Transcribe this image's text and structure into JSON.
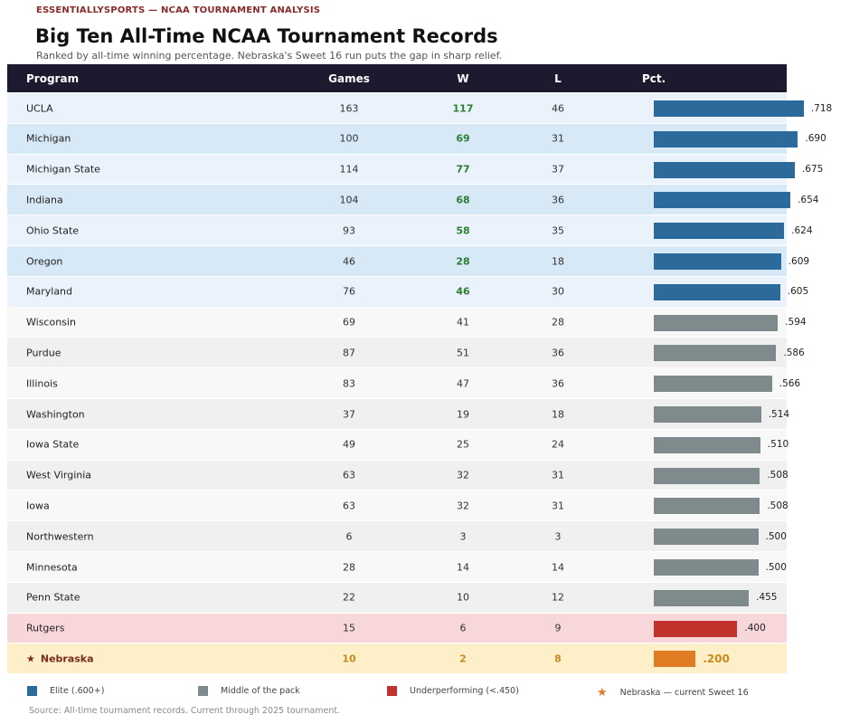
{
  "header": {
    "kicker": "ESSENTIALLYSPORTS — NCAA TOURNAMENT ANALYSIS",
    "title": "Big Ten All-Time NCAA Tournament Records",
    "subtitle": "Ranked by all-time winning percentage. Nebraska's Sweet 16 run puts the gap in sharp relief."
  },
  "chart_data": {
    "type": "table",
    "columns": [
      "Program",
      "Games",
      "W",
      "L",
      "Pct."
    ],
    "rows": [
      {
        "program": "UCLA",
        "games": "163",
        "w": "117",
        "l": "46",
        "pct": ".718",
        "value": 0.718,
        "tier": "elite"
      },
      {
        "program": "Michigan",
        "games": "100",
        "w": "69",
        "l": "31",
        "pct": ".690",
        "value": 0.69,
        "tier": "elite"
      },
      {
        "program": "Michigan State",
        "games": "114",
        "w": "77",
        "l": "37",
        "pct": ".675",
        "value": 0.675,
        "tier": "elite"
      },
      {
        "program": "Indiana",
        "games": "104",
        "w": "68",
        "l": "36",
        "pct": ".654",
        "value": 0.654,
        "tier": "elite"
      },
      {
        "program": "Ohio State",
        "games": "93",
        "w": "58",
        "l": "35",
        "pct": ".624",
        "value": 0.624,
        "tier": "elite"
      },
      {
        "program": "Oregon",
        "games": "46",
        "w": "28",
        "l": "18",
        "pct": ".609",
        "value": 0.609,
        "tier": "elite"
      },
      {
        "program": "Maryland",
        "games": "76",
        "w": "46",
        "l": "30",
        "pct": ".605",
        "value": 0.605,
        "tier": "elite"
      },
      {
        "program": "Wisconsin",
        "games": "69",
        "w": "41",
        "l": "28",
        "pct": ".594",
        "value": 0.594,
        "tier": "mid"
      },
      {
        "program": "Purdue",
        "games": "87",
        "w": "51",
        "l": "36",
        "pct": ".586",
        "value": 0.586,
        "tier": "mid"
      },
      {
        "program": "Illinois",
        "games": "83",
        "w": "47",
        "l": "36",
        "pct": ".566",
        "value": 0.566,
        "tier": "mid"
      },
      {
        "program": "Washington",
        "games": "37",
        "w": "19",
        "l": "18",
        "pct": ".514",
        "value": 0.514,
        "tier": "mid"
      },
      {
        "program": "Iowa State",
        "games": "49",
        "w": "25",
        "l": "24",
        "pct": ".510",
        "value": 0.51,
        "tier": "mid"
      },
      {
        "program": "West Virginia",
        "games": "63",
        "w": "32",
        "l": "31",
        "pct": ".508",
        "value": 0.508,
        "tier": "mid"
      },
      {
        "program": "Iowa",
        "games": "63",
        "w": "32",
        "l": "31",
        "pct": ".508",
        "value": 0.508,
        "tier": "mid"
      },
      {
        "program": "Northwestern",
        "games": "6",
        "w": "3",
        "l": "3",
        "pct": ".500",
        "value": 0.5,
        "tier": "mid"
      },
      {
        "program": "Minnesota",
        "games": "28",
        "w": "14",
        "l": "14",
        "pct": ".500",
        "value": 0.5,
        "tier": "mid"
      },
      {
        "program": "Penn State",
        "games": "22",
        "w": "10",
        "l": "12",
        "pct": ".455",
        "value": 0.455,
        "tier": "mid"
      },
      {
        "program": "Rutgers",
        "games": "15",
        "w": "6",
        "l": "9",
        "pct": ".400",
        "value": 0.4,
        "tier": "under"
      },
      {
        "program": "Nebraska",
        "games": "10",
        "w": "2",
        "l": "8",
        "pct": ".200",
        "value": 0.2,
        "tier": "neb"
      }
    ],
    "xlim": [
      0,
      0.75
    ]
  },
  "star": "★",
  "legend": [
    {
      "label": "Elite (.600+)",
      "color": "#2b6a9a"
    },
    {
      "label": "Middle of the pack",
      "color": "#7f8a8c"
    },
    {
      "label": "Underperforming (<.450)",
      "color": "#c0322b"
    },
    {
      "label": "Nebraska — current Sweet 16",
      "color": "#e07b24"
    }
  ],
  "source": "Source: All-time tournament records. Current through 2025 tournament."
}
